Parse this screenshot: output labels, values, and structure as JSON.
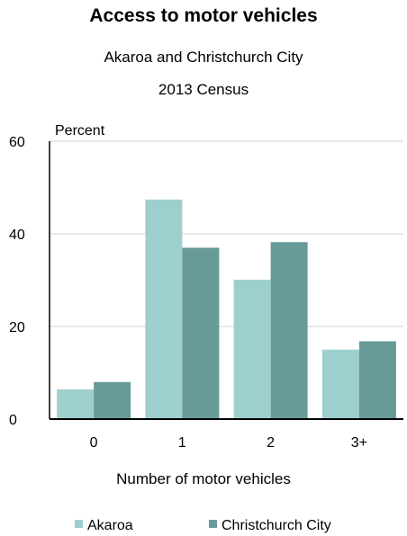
{
  "chart_data": {
    "type": "bar",
    "title": "Access to motor vehicles",
    "subtitle": [
      "Akaroa and Christchurch City",
      "2013 Census"
    ],
    "xlabel": "Number of motor vehicles",
    "ylabel": "Percent",
    "categories": [
      "0",
      "1",
      "2",
      "3+"
    ],
    "ylim": [
      0,
      60
    ],
    "yticks": [
      0,
      20,
      40,
      60
    ],
    "grid": true,
    "legend_position": "bottom",
    "series": [
      {
        "name": "Akaroa",
        "color": "#9ecfcf",
        "values": [
          6.4,
          47.4,
          30.1,
          15.0
        ]
      },
      {
        "name": "Christchurch City",
        "color": "#689a98",
        "values": [
          8.0,
          37.0,
          38.2,
          16.8
        ]
      }
    ]
  }
}
